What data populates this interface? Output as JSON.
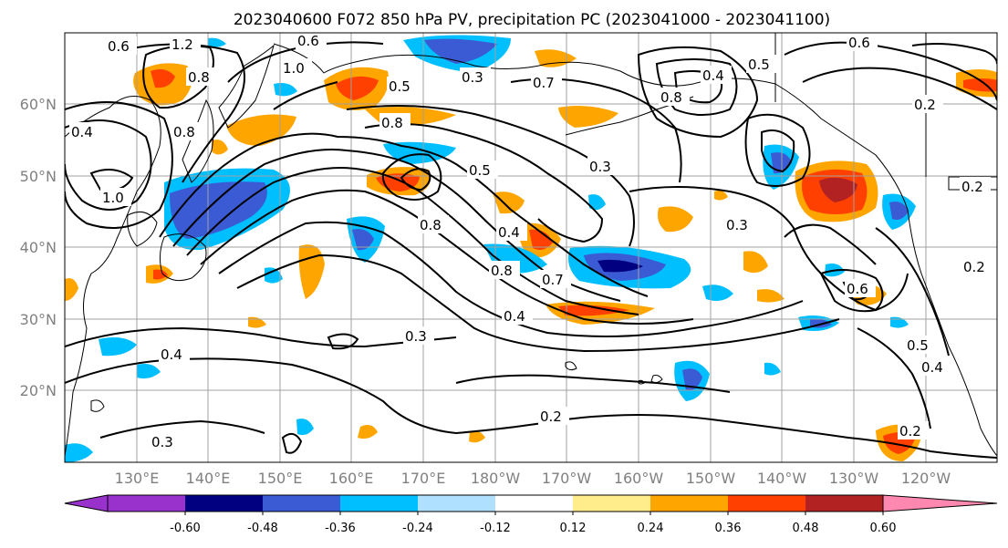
{
  "title": "2023040600 F072 850 hPa PV, precipitation PC (2023041000 - 2023041100)",
  "lat_labels": [
    "60°N",
    "50°N",
    "40°N",
    "30°N",
    "20°N"
  ],
  "lon_labels": [
    "130°E",
    "140°E",
    "150°E",
    "160°E",
    "170°E",
    "180°W",
    "170°W",
    "160°W",
    "150°W",
    "140°W",
    "130°W",
    "120°W"
  ],
  "colorbar": {
    "ticks": [
      "-0.60",
      "-0.48",
      "-0.36",
      "-0.24",
      "-0.12",
      "0.12",
      "0.24",
      "0.36",
      "0.48",
      "0.60"
    ],
    "colors": [
      "#9932cc",
      "#000080",
      "#3a5bd3",
      "#00bfff",
      "#b0e0ff",
      "#ffffff",
      "#ffec8b",
      "#ffa500",
      "#ff4000",
      "#b22222",
      "#ff88b0"
    ]
  },
  "contour_labels": [
    {
      "text": "0.6"
    },
    {
      "text": "1.2"
    },
    {
      "text": "0.8"
    },
    {
      "text": "1.0"
    },
    {
      "text": "0.6"
    },
    {
      "text": "0.5"
    },
    {
      "text": "0.8"
    },
    {
      "text": "0.3"
    },
    {
      "text": "0.7"
    },
    {
      "text": "0.8"
    },
    {
      "text": "0.4"
    },
    {
      "text": "0.5"
    },
    {
      "text": "0.6"
    },
    {
      "text": "0.2"
    },
    {
      "text": "0.4"
    },
    {
      "text": "0.8"
    },
    {
      "text": "1.0"
    },
    {
      "text": "0.3"
    },
    {
      "text": "0.5"
    },
    {
      "text": "0.8"
    },
    {
      "text": "0.4"
    },
    {
      "text": "0.3"
    },
    {
      "text": "0.8"
    },
    {
      "text": "0.7"
    },
    {
      "text": "0.4"
    },
    {
      "text": "0.3"
    },
    {
      "text": "0.6"
    },
    {
      "text": "0.5"
    },
    {
      "text": "0.4"
    },
    {
      "text": "0.2"
    },
    {
      "text": "0.2"
    },
    {
      "text": "0.3"
    },
    {
      "text": "0.2"
    },
    {
      "text": "0.4"
    },
    {
      "text": "0.2"
    }
  ]
}
